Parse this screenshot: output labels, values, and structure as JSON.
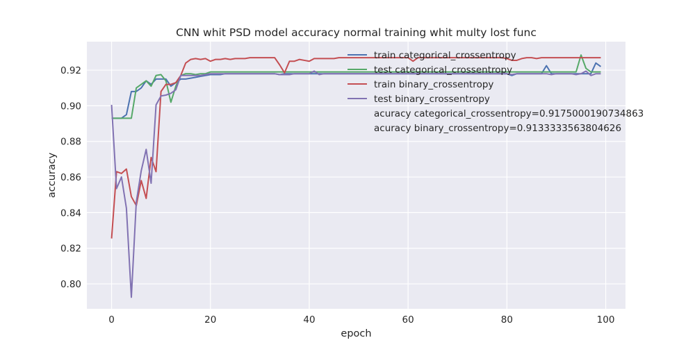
{
  "chart_data": {
    "type": "line",
    "title": "CNN whit PSD model accuracy normal training whit multy lost func",
    "xlabel": "epoch",
    "ylabel": "accuracy",
    "xlim": [
      -5,
      104
    ],
    "ylim": [
      0.786,
      0.936
    ],
    "xticks": [
      0,
      20,
      40,
      60,
      80,
      100
    ],
    "yticks": [
      0.8,
      0.82,
      0.84,
      0.86,
      0.88,
      0.9,
      0.92
    ],
    "ytick_labels": [
      "0.80",
      "0.82",
      "0.84",
      "0.86",
      "0.88",
      "0.90",
      "0.92"
    ],
    "grid": true,
    "legend_position": "top-right",
    "colors": {
      "background": "#EAEAF2",
      "grid": "#FFFFFF",
      "train categorical_crossentropy": "#4C72B0",
      "test categorical_crossentropy": "#55A868",
      "train binary_crossentropy": "#C44E52",
      "test binary_crossentropy": "#8172B2"
    },
    "series": [
      {
        "name": "train categorical_crossentropy",
        "x": [
          0,
          1,
          2,
          3,
          4,
          5,
          6,
          7,
          8,
          9,
          10,
          11,
          12,
          13,
          14,
          15,
          16,
          17,
          18,
          19,
          20,
          21,
          22,
          23,
          24,
          25,
          26,
          27,
          28,
          29,
          30,
          31,
          32,
          33,
          34,
          35,
          36,
          37,
          38,
          39,
          40,
          41,
          42,
          43,
          44,
          45,
          46,
          47,
          48,
          49,
          50,
          51,
          52,
          53,
          54,
          55,
          56,
          57,
          58,
          59,
          60,
          61,
          62,
          63,
          64,
          65,
          66,
          67,
          68,
          69,
          70,
          71,
          72,
          73,
          74,
          75,
          76,
          77,
          78,
          79,
          80,
          81,
          82,
          83,
          84,
          85,
          86,
          87,
          88,
          89,
          90,
          91,
          92,
          93,
          94,
          95,
          96,
          97,
          98,
          99
        ],
        "y": [
          0.893,
          0.893,
          0.893,
          0.895,
          0.908,
          0.908,
          0.91,
          0.914,
          0.912,
          0.915,
          0.915,
          0.915,
          0.911,
          0.913,
          0.915,
          0.915,
          0.9155,
          0.916,
          0.9165,
          0.917,
          0.9175,
          0.9175,
          0.9175,
          0.918,
          0.918,
          0.918,
          0.918,
          0.918,
          0.918,
          0.918,
          0.918,
          0.918,
          0.918,
          0.918,
          0.9175,
          0.918,
          0.918,
          0.918,
          0.918,
          0.918,
          0.918,
          0.918,
          0.918,
          0.918,
          0.918,
          0.918,
          0.918,
          0.918,
          0.918,
          0.918,
          0.918,
          0.918,
          0.918,
          0.918,
          0.918,
          0.918,
          0.918,
          0.918,
          0.918,
          0.918,
          0.918,
          0.918,
          0.918,
          0.918,
          0.918,
          0.918,
          0.918,
          0.918,
          0.918,
          0.918,
          0.918,
          0.918,
          0.918,
          0.918,
          0.918,
          0.918,
          0.918,
          0.918,
          0.918,
          0.918,
          0.918,
          0.917,
          0.918,
          0.918,
          0.918,
          0.918,
          0.918,
          0.918,
          0.9225,
          0.918,
          0.918,
          0.918,
          0.918,
          0.918,
          0.918,
          0.918,
          0.918,
          0.918,
          0.924,
          0.922
        ]
      },
      {
        "name": "test categorical_crossentropy",
        "x": [
          0,
          1,
          2,
          3,
          4,
          5,
          6,
          7,
          8,
          9,
          10,
          11,
          12,
          13,
          14,
          15,
          16,
          17,
          18,
          19,
          20,
          21,
          22,
          23,
          24,
          25,
          26,
          27,
          28,
          29,
          30,
          31,
          32,
          33,
          34,
          35,
          36,
          37,
          38,
          39,
          40,
          41,
          42,
          43,
          44,
          45,
          46,
          47,
          48,
          49,
          50,
          51,
          52,
          53,
          54,
          55,
          56,
          57,
          58,
          59,
          60,
          61,
          62,
          63,
          64,
          65,
          66,
          67,
          68,
          69,
          70,
          71,
          72,
          73,
          74,
          75,
          76,
          77,
          78,
          79,
          80,
          81,
          82,
          83,
          84,
          85,
          86,
          87,
          88,
          89,
          90,
          91,
          92,
          93,
          94,
          95,
          96,
          97,
          98,
          99
        ],
        "y": [
          0.893,
          0.893,
          0.893,
          0.893,
          0.893,
          0.91,
          0.912,
          0.914,
          0.911,
          0.917,
          0.9175,
          0.914,
          0.902,
          0.911,
          0.917,
          0.918,
          0.918,
          0.9175,
          0.918,
          0.918,
          0.919,
          0.919,
          0.919,
          0.919,
          0.919,
          0.919,
          0.919,
          0.919,
          0.919,
          0.919,
          0.919,
          0.919,
          0.919,
          0.919,
          0.919,
          0.919,
          0.919,
          0.919,
          0.919,
          0.919,
          0.919,
          0.919,
          0.919,
          0.919,
          0.919,
          0.919,
          0.919,
          0.919,
          0.919,
          0.919,
          0.919,
          0.919,
          0.919,
          0.919,
          0.919,
          0.919,
          0.919,
          0.919,
          0.919,
          0.919,
          0.919,
          0.919,
          0.919,
          0.919,
          0.919,
          0.919,
          0.919,
          0.919,
          0.919,
          0.919,
          0.919,
          0.919,
          0.919,
          0.919,
          0.919,
          0.919,
          0.919,
          0.919,
          0.919,
          0.919,
          0.919,
          0.919,
          0.919,
          0.919,
          0.919,
          0.919,
          0.919,
          0.919,
          0.919,
          0.919,
          0.919,
          0.919,
          0.919,
          0.919,
          0.919,
          0.9285,
          0.921,
          0.919,
          0.919,
          0.919
        ]
      },
      {
        "name": "train binary_crossentropy",
        "x": [
          0,
          1,
          2,
          3,
          4,
          5,
          6,
          7,
          8,
          9,
          10,
          11,
          12,
          13,
          14,
          15,
          16,
          17,
          18,
          19,
          20,
          21,
          22,
          23,
          24,
          25,
          26,
          27,
          28,
          29,
          30,
          31,
          32,
          33,
          34,
          35,
          36,
          37,
          38,
          39,
          40,
          41,
          42,
          43,
          44,
          45,
          46,
          47,
          48,
          49,
          50,
          51,
          52,
          53,
          54,
          55,
          56,
          57,
          58,
          59,
          60,
          61,
          62,
          63,
          64,
          65,
          66,
          67,
          68,
          69,
          70,
          71,
          72,
          73,
          74,
          75,
          76,
          77,
          78,
          79,
          80,
          81,
          82,
          83,
          84,
          85,
          86,
          87,
          88,
          89,
          90,
          91,
          92,
          93,
          94,
          95,
          96,
          97,
          98,
          99
        ],
        "y": [
          0.8255,
          0.863,
          0.862,
          0.8645,
          0.849,
          0.844,
          0.858,
          0.848,
          0.871,
          0.863,
          0.908,
          0.912,
          0.912,
          0.913,
          0.917,
          0.924,
          0.926,
          0.9265,
          0.926,
          0.9265,
          0.925,
          0.926,
          0.926,
          0.9265,
          0.926,
          0.9265,
          0.9265,
          0.9265,
          0.927,
          0.927,
          0.927,
          0.927,
          0.927,
          0.927,
          0.923,
          0.9185,
          0.925,
          0.925,
          0.926,
          0.9255,
          0.925,
          0.9265,
          0.9265,
          0.9265,
          0.9265,
          0.9265,
          0.927,
          0.927,
          0.927,
          0.927,
          0.927,
          0.927,
          0.927,
          0.927,
          0.927,
          0.927,
          0.927,
          0.927,
          0.927,
          0.927,
          0.927,
          0.925,
          0.927,
          0.927,
          0.927,
          0.927,
          0.927,
          0.927,
          0.927,
          0.927,
          0.927,
          0.927,
          0.927,
          0.927,
          0.927,
          0.927,
          0.927,
          0.927,
          0.927,
          0.927,
          0.9265,
          0.9255,
          0.9255,
          0.9265,
          0.927,
          0.927,
          0.9265,
          0.927,
          0.927,
          0.927,
          0.927,
          0.927,
          0.927,
          0.927,
          0.927,
          0.927,
          0.927,
          0.927,
          0.927,
          0.927
        ]
      },
      {
        "name": "test binary_crossentropy",
        "x": [
          0,
          1,
          2,
          3,
          4,
          5,
          6,
          7,
          8,
          9,
          10,
          11,
          12,
          13,
          14,
          15,
          16,
          17,
          18,
          19,
          20,
          21,
          22,
          23,
          24,
          25,
          26,
          27,
          28,
          29,
          30,
          31,
          32,
          33,
          34,
          35,
          36,
          37,
          38,
          39,
          40,
          41,
          42,
          43,
          44,
          45,
          46,
          47,
          48,
          49,
          50,
          51,
          52,
          53,
          54,
          55,
          56,
          57,
          58,
          59,
          60,
          61,
          62,
          63,
          64,
          65,
          66,
          67,
          68,
          69,
          70,
          71,
          72,
          73,
          74,
          75,
          76,
          77,
          78,
          79,
          80,
          81,
          82,
          83,
          84,
          85,
          86,
          87,
          88,
          89,
          90,
          91,
          92,
          93,
          94,
          95,
          96,
          97,
          98,
          99
        ],
        "y": [
          0.9005,
          0.8535,
          0.86,
          0.8425,
          0.7925,
          0.846,
          0.8635,
          0.8755,
          0.8565,
          0.9005,
          0.9055,
          0.906,
          0.907,
          0.909,
          0.917,
          0.917,
          0.917,
          0.917,
          0.917,
          0.9175,
          0.918,
          0.918,
          0.918,
          0.918,
          0.918,
          0.918,
          0.918,
          0.918,
          0.918,
          0.918,
          0.918,
          0.918,
          0.918,
          0.918,
          0.9175,
          0.9175,
          0.9175,
          0.918,
          0.918,
          0.918,
          0.918,
          0.9195,
          0.9175,
          0.918,
          0.918,
          0.918,
          0.918,
          0.918,
          0.918,
          0.918,
          0.918,
          0.918,
          0.918,
          0.918,
          0.918,
          0.918,
          0.918,
          0.918,
          0.918,
          0.918,
          0.918,
          0.918,
          0.918,
          0.918,
          0.918,
          0.918,
          0.918,
          0.918,
          0.918,
          0.918,
          0.918,
          0.918,
          0.918,
          0.918,
          0.918,
          0.918,
          0.918,
          0.918,
          0.918,
          0.918,
          0.918,
          0.9175,
          0.918,
          0.918,
          0.918,
          0.918,
          0.918,
          0.918,
          0.918,
          0.9175,
          0.918,
          0.918,
          0.918,
          0.918,
          0.9175,
          0.918,
          0.9195,
          0.917,
          0.918,
          0.918
        ]
      }
    ],
    "legend_entries": [
      "train categorical_crossentropy",
      "test categorical_crossentropy",
      "train binary_crossentropy",
      "test binary_crossentropy"
    ],
    "annotations": [
      "acuracy categorical_crossentropy=0.9175000190734863",
      "acuracy binary_crossentropy=0.9133333563804626"
    ]
  }
}
